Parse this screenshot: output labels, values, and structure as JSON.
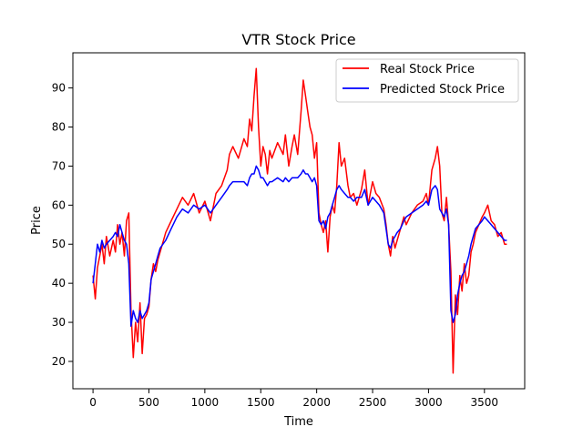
{
  "chart_data": {
    "type": "line",
    "title": "VTR Stock Price",
    "xlabel": "Time",
    "ylabel": "Price",
    "xlim": [
      -180,
      3860
    ],
    "ylim": [
      13,
      99
    ],
    "xticks": [
      0,
      500,
      1000,
      1500,
      2000,
      2500,
      3000,
      3500
    ],
    "yticks": [
      20,
      30,
      40,
      50,
      60,
      70,
      80,
      90
    ],
    "grid": false,
    "legend_position": "top-right",
    "series": [
      {
        "name": "Real Stock Price",
        "color": "#ff0000",
        "x": [
          0,
          20,
          40,
          60,
          80,
          100,
          120,
          150,
          180,
          200,
          220,
          240,
          260,
          280,
          300,
          320,
          340,
          360,
          380,
          400,
          420,
          440,
          460,
          480,
          500,
          520,
          540,
          560,
          580,
          600,
          650,
          700,
          750,
          800,
          850,
          900,
          950,
          1000,
          1050,
          1100,
          1150,
          1200,
          1220,
          1250,
          1300,
          1350,
          1380,
          1400,
          1420,
          1440,
          1460,
          1480,
          1500,
          1520,
          1540,
          1560,
          1580,
          1600,
          1650,
          1700,
          1720,
          1750,
          1780,
          1800,
          1830,
          1860,
          1880,
          1900,
          1920,
          1940,
          1960,
          1980,
          2000,
          2020,
          2040,
          2060,
          2080,
          2100,
          2120,
          2140,
          2160,
          2180,
          2200,
          2220,
          2250,
          2280,
          2300,
          2330,
          2360,
          2400,
          2430,
          2460,
          2500,
          2530,
          2560,
          2600,
          2620,
          2640,
          2660,
          2680,
          2700,
          2720,
          2750,
          2780,
          2800,
          2850,
          2900,
          2950,
          2980,
          3000,
          3030,
          3060,
          3080,
          3100,
          3120,
          3140,
          3160,
          3180,
          3200,
          3220,
          3240,
          3260,
          3280,
          3300,
          3320,
          3340,
          3360,
          3380,
          3400,
          3420,
          3450,
          3480,
          3500,
          3530,
          3560,
          3590,
          3620,
          3650,
          3680,
          3700
        ],
        "values": [
          42,
          36,
          44,
          47,
          50,
          45,
          52,
          47,
          51,
          48,
          55,
          50,
          53,
          47,
          56,
          58,
          33,
          21,
          30,
          25,
          35,
          22,
          31,
          32,
          34,
          41,
          45,
          43,
          46,
          48,
          53,
          56,
          59,
          62,
          60,
          63,
          58,
          61,
          56,
          63,
          65,
          69,
          73,
          75,
          72,
          77,
          75,
          82,
          79,
          88,
          95,
          80,
          70,
          75,
          73,
          68,
          74,
          72,
          76,
          73,
          78,
          70,
          75,
          78,
          73,
          84,
          92,
          88,
          84,
          80,
          78,
          72,
          76,
          58,
          55,
          53,
          56,
          48,
          57,
          60,
          58,
          65,
          76,
          70,
          72,
          65,
          62,
          63,
          60,
          64,
          69,
          60,
          66,
          63,
          62,
          59,
          55,
          50,
          47,
          52,
          49,
          51,
          54,
          57,
          55,
          58,
          60,
          61,
          63,
          60,
          69,
          72,
          75,
          70,
          58,
          56,
          62,
          55,
          43,
          17,
          37,
          32,
          42,
          38,
          45,
          40,
          42,
          48,
          50,
          53,
          55,
          57,
          58,
          60,
          56,
          55,
          52,
          53,
          50,
          50
        ]
      },
      {
        "name": "Predicted Stock Price",
        "color": "#0000ff",
        "x": [
          0,
          20,
          40,
          60,
          80,
          100,
          120,
          150,
          180,
          200,
          220,
          240,
          260,
          280,
          300,
          320,
          340,
          360,
          380,
          400,
          420,
          440,
          460,
          480,
          500,
          520,
          540,
          560,
          580,
          600,
          650,
          700,
          750,
          800,
          850,
          900,
          950,
          1000,
          1050,
          1100,
          1150,
          1200,
          1220,
          1250,
          1300,
          1350,
          1380,
          1400,
          1420,
          1440,
          1460,
          1480,
          1500,
          1520,
          1540,
          1560,
          1580,
          1600,
          1650,
          1700,
          1720,
          1750,
          1780,
          1800,
          1830,
          1860,
          1880,
          1900,
          1920,
          1940,
          1960,
          1980,
          2000,
          2020,
          2040,
          2060,
          2080,
          2100,
          2120,
          2140,
          2160,
          2180,
          2200,
          2220,
          2250,
          2280,
          2300,
          2330,
          2360,
          2400,
          2430,
          2460,
          2500,
          2530,
          2560,
          2600,
          2620,
          2640,
          2660,
          2680,
          2700,
          2720,
          2750,
          2780,
          2800,
          2850,
          2900,
          2950,
          2980,
          3000,
          3030,
          3060,
          3080,
          3100,
          3120,
          3140,
          3160,
          3180,
          3200,
          3220,
          3240,
          3260,
          3280,
          3300,
          3320,
          3340,
          3360,
          3380,
          3400,
          3420,
          3450,
          3480,
          3500,
          3530,
          3560,
          3590,
          3620,
          3650,
          3680,
          3700
        ],
        "values": [
          40,
          45,
          50,
          48,
          51,
          49,
          50,
          51,
          52,
          53,
          52,
          55,
          53,
          51,
          50,
          45,
          29,
          33,
          31,
          30,
          33,
          31,
          32,
          33,
          35,
          41,
          43,
          45,
          47,
          49,
          51,
          54,
          57,
          59,
          58,
          60,
          59,
          60,
          58,
          60,
          62,
          64,
          65,
          66,
          66,
          66,
          65,
          67,
          68,
          68,
          70,
          69,
          67,
          67,
          66,
          65,
          66,
          66,
          67,
          66,
          67,
          66,
          67,
          67,
          67,
          68,
          69,
          68,
          68,
          67,
          66,
          67,
          65,
          56,
          55,
          56,
          54,
          57,
          58,
          60,
          62,
          64,
          65,
          64,
          63,
          62,
          62,
          61,
          62,
          62,
          64,
          60,
          62,
          61,
          60,
          58,
          54,
          50,
          49,
          51,
          52,
          53,
          54,
          56,
          57,
          58,
          59,
          60,
          61,
          60,
          64,
          65,
          64,
          59,
          58,
          57,
          59,
          55,
          33,
          30,
          32,
          37,
          40,
          42,
          43,
          45,
          47,
          50,
          52,
          54,
          55,
          56,
          57,
          56,
          55,
          54,
          53,
          52,
          51,
          51
        ]
      }
    ]
  }
}
